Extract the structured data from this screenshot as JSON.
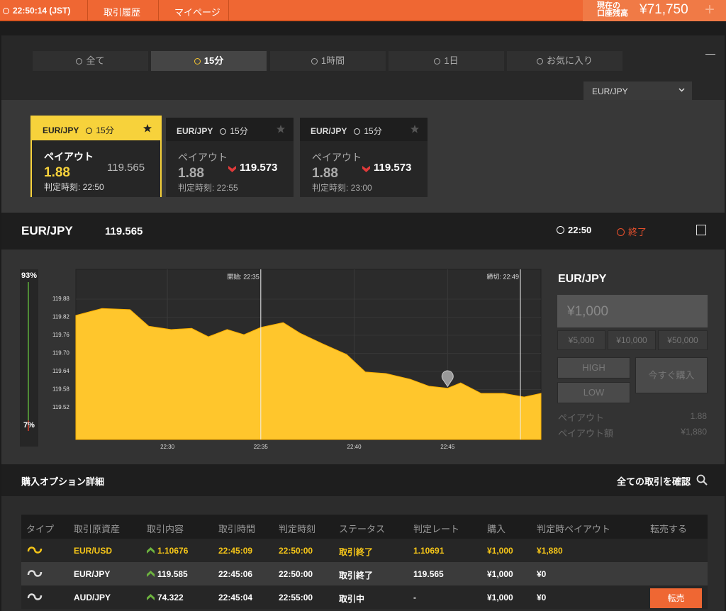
{
  "top_bar": {
    "clock": "22:50:14 (JST)",
    "nav": [
      "取引履歴",
      "マイページ"
    ],
    "balance_label": [
      "現在の",
      "口座残高"
    ],
    "balance": "¥71,750",
    "add": "+"
  },
  "tabs": {
    "selected": 1,
    "items": [
      "全て",
      "15分",
      "1時間",
      "1日",
      "お気に入り"
    ],
    "asset_select": "EUR/JPY"
  },
  "cards": {
    "selected": 0,
    "items": [
      {
        "asset": "EUR/JPY",
        "duration": "15分",
        "payout_label": "ペイアウト",
        "payout": "1.88",
        "rate": "119.565",
        "expiry": "判定時刻: 22:50"
      },
      {
        "asset": "EUR/JPY",
        "duration": "15分",
        "payout_label": "ペイアウト",
        "payout": "1.88",
        "rate": "119.573",
        "expiry": "判定時刻: 22:55"
      },
      {
        "asset": "EUR/JPY",
        "duration": "15分",
        "payout_label": "ペイアウト",
        "payout": "1.88",
        "rate": "119.573",
        "expiry": "判定時刻: 23:00"
      }
    ]
  },
  "asset_header": {
    "asset": "EUR/JPY",
    "rate": "119.565",
    "expiry": "22:50",
    "status": "終了"
  },
  "chart": {
    "type": "area",
    "color": "#ffc62c",
    "gauge": {
      "high": {
        "value": 93,
        "label": "93%"
      },
      "low": {
        "value": 7,
        "label": "7%"
      }
    },
    "x": [
      1345.1,
      1346.5,
      1348,
      1349,
      1350.2,
      1351.3,
      1352.2,
      1353.2,
      1354.1,
      1355,
      1356.2,
      1357.1,
      1358.3,
      1359.6,
      1360.6,
      1361.7,
      1363,
      1364,
      1365,
      1365.7,
      1366.8,
      1368,
      1369.1,
      1370
    ],
    "values": [
      119.826,
      119.849,
      119.845,
      119.79,
      119.779,
      119.783,
      119.755,
      119.779,
      119.762,
      119.786,
      119.802,
      119.767,
      119.732,
      119.696,
      119.638,
      119.633,
      119.614,
      119.591,
      119.584,
      119.602,
      119.567,
      119.567,
      119.555,
      119.567
    ],
    "xlim": [
      1345.1,
      1370
    ],
    "xticks": [
      {
        "value": 1350,
        "label": "22:30"
      },
      {
        "value": 1355,
        "label": "22:35"
      },
      {
        "value": 1360,
        "label": "22:40"
      },
      {
        "value": 1365,
        "label": "22:45"
      }
    ],
    "ylim": [
      119.414,
      119.979
    ],
    "yticks": [
      119.88,
      119.82,
      119.76,
      {
        "value": 119.7,
        "label": "119.70"
      },
      119.64,
      119.58,
      119.52
    ],
    "markers": [
      {
        "label": "開始: 22:35",
        "x": 1355
      },
      {
        "label": "締切: 22:49",
        "x": 1368.9
      }
    ],
    "entry": {
      "x": 1365,
      "y": 119.59
    }
  },
  "trade_panel": {
    "asset": "EUR/JPY",
    "amount_placeholder": "¥1,000",
    "presets": [
      "¥5,000",
      "¥10,000",
      "¥50,000"
    ],
    "high": "HIGH",
    "low": "LOW",
    "buy_now": "今すぐ購入",
    "payout_label": "ペイアウト",
    "payout": "1.88",
    "payout_amount_label": "ペイアウト額",
    "payout_amount": "¥1,880"
  },
  "details": {
    "title": "購入オプション詳細",
    "view_all": "全ての取引を確認",
    "table": {
      "headers": [
        "タイプ",
        "取引原資産",
        "取引内容",
        "取引時間",
        "判定時刻",
        "ステータス",
        "判定レート",
        "購入",
        "判定時ペイアウト",
        "転売する"
      ],
      "rows": [
        {
          "asset": "EUR/USD",
          "content": "1.10676",
          "time": "22:45:09",
          "expiry": "22:50:00",
          "status": "取引終了",
          "rate": "1.10691",
          "amount": "¥1,000",
          "payout": "¥1,880"
        },
        {
          "asset": "EUR/JPY",
          "content": "119.585",
          "time": "22:45:06",
          "expiry": "22:50:00",
          "status": "取引終了",
          "rate": "119.565",
          "amount": "¥1,000",
          "payout": "¥0"
        },
        {
          "asset": "AUD/JPY",
          "content": "74.322",
          "time": "22:45:04",
          "expiry": "22:55:00",
          "status": "取引中",
          "rate": "-",
          "amount": "¥1,000",
          "payout": "¥0",
          "action": "転売"
        }
      ]
    }
  }
}
